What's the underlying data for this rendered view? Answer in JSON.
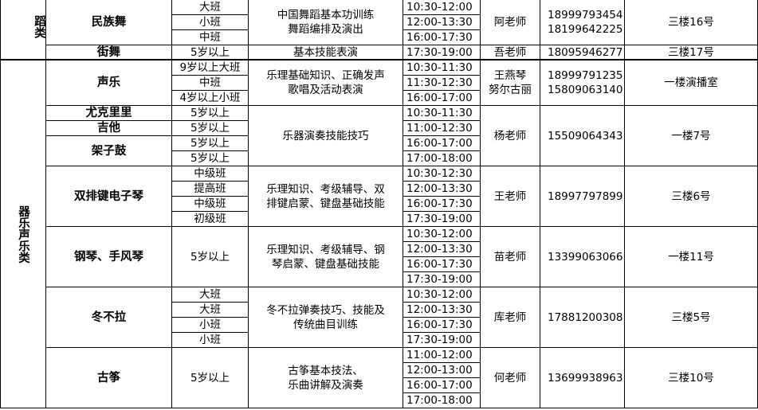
{
  "sections": [
    {
      "category": "蹈类",
      "groups": [
        {
          "courses": [
            {
              "name": "民族舞",
              "classes": [
                "大班",
                "小班",
                "中班"
              ]
            }
          ],
          "content": [
            "中国舞蹈基本功训练",
            "舞蹈编排及演出"
          ],
          "times": [
            "10:30-12:00",
            "12:00-13:30",
            "16:00-17:30"
          ],
          "teacher": [
            "阿老师"
          ],
          "phones": [
            "18999793454",
            "18199642225"
          ],
          "location": "三楼16号"
        },
        {
          "courses": [
            {
              "name": "街舞",
              "classes": [
                "5岁以上"
              ]
            }
          ],
          "content": [
            "基本技能表演"
          ],
          "times": [
            "17:30-19:00"
          ],
          "teacher": [
            "吾老师"
          ],
          "phones": [
            "18095946277"
          ],
          "location": "三楼17号"
        }
      ]
    },
    {
      "category": "器乐声乐类",
      "groups": [
        {
          "courses": [
            {
              "name": "声乐",
              "classes": [
                "9岁以上大班",
                "中班",
                "4岁以上小班"
              ]
            }
          ],
          "content": [
            "乐理基础知识、正确发声",
            "歌唱及活动表演"
          ],
          "times": [
            "10:30-11:30",
            "11:30-12:30",
            "16:00-17:00"
          ],
          "teacher": [
            "王燕琴",
            "努尔古丽"
          ],
          "phones": [
            "18999791235",
            "15809063140"
          ],
          "location": "一楼演播室"
        },
        {
          "courses": [
            {
              "name": "尤克里里",
              "classes": [
                "5岁以上"
              ]
            },
            {
              "name": "吉他",
              "classes": [
                "5岁以上"
              ]
            },
            {
              "name": "架子鼓",
              "classes": [
                "5岁以上",
                "5岁以上"
              ]
            }
          ],
          "content": [
            "乐器演奏技能技巧"
          ],
          "times": [
            "10:30-11:30",
            "11:00-12:30",
            "16:00-17:00",
            "17:00-18:00"
          ],
          "teacher": [
            "杨老师"
          ],
          "phones": [
            "15509064343"
          ],
          "location": "一楼7号"
        },
        {
          "courses": [
            {
              "name": "双排键电子琴",
              "classes": [
                "中级班",
                "提高班",
                "中级班",
                "初级班"
              ]
            }
          ],
          "content": [
            "乐理知识、考级辅导、双",
            "排键启蒙、键盘基础技能"
          ],
          "times": [
            "10:30-12:30",
            "12:00-13:30",
            "16:00-17:30",
            "17:30-19:00"
          ],
          "teacher": [
            "王老师"
          ],
          "phones": [
            "18997797899"
          ],
          "location": "三楼6号"
        },
        {
          "courses": [
            {
              "name": "钢琴、手风琴",
              "classes": [
                "5岁以上"
              ]
            }
          ],
          "content": [
            "乐理知识、考级辅导、钢",
            "琴启蒙、键盘基础技能"
          ],
          "times": [
            "10:30-12:00",
            "12:00-13:30",
            "16:00-17:30",
            "17:30-19:00"
          ],
          "teacher": [
            "苗老师"
          ],
          "phones": [
            "13399063066"
          ],
          "location": "一楼11号"
        },
        {
          "courses": [
            {
              "name": "冬不拉",
              "classes": [
                "大班",
                "大班",
                "小班",
                "小班"
              ]
            }
          ],
          "content": [
            "冬不拉弹奏技巧、技能及",
            "传统曲目训练"
          ],
          "times": [
            "10:30-12:00",
            "12:00-13:30",
            "16:00-17:30",
            "17:30-19:00"
          ],
          "teacher": [
            "库老师"
          ],
          "phones": [
            "17881200308"
          ],
          "location": "三楼5号"
        },
        {
          "courses": [
            {
              "name": "古筝",
              "classes": [
                "5岁以上"
              ]
            }
          ],
          "content": [
            "古筝基本技法、",
            "乐曲讲解及演奏"
          ],
          "times": [
            "11:00-12:00",
            "12:00-13:00",
            "16:00-17:00",
            "17:00-18:00"
          ],
          "teacher": [
            "何老师"
          ],
          "phones": [
            "13699938963"
          ],
          "location": "三楼10号"
        }
      ]
    }
  ]
}
